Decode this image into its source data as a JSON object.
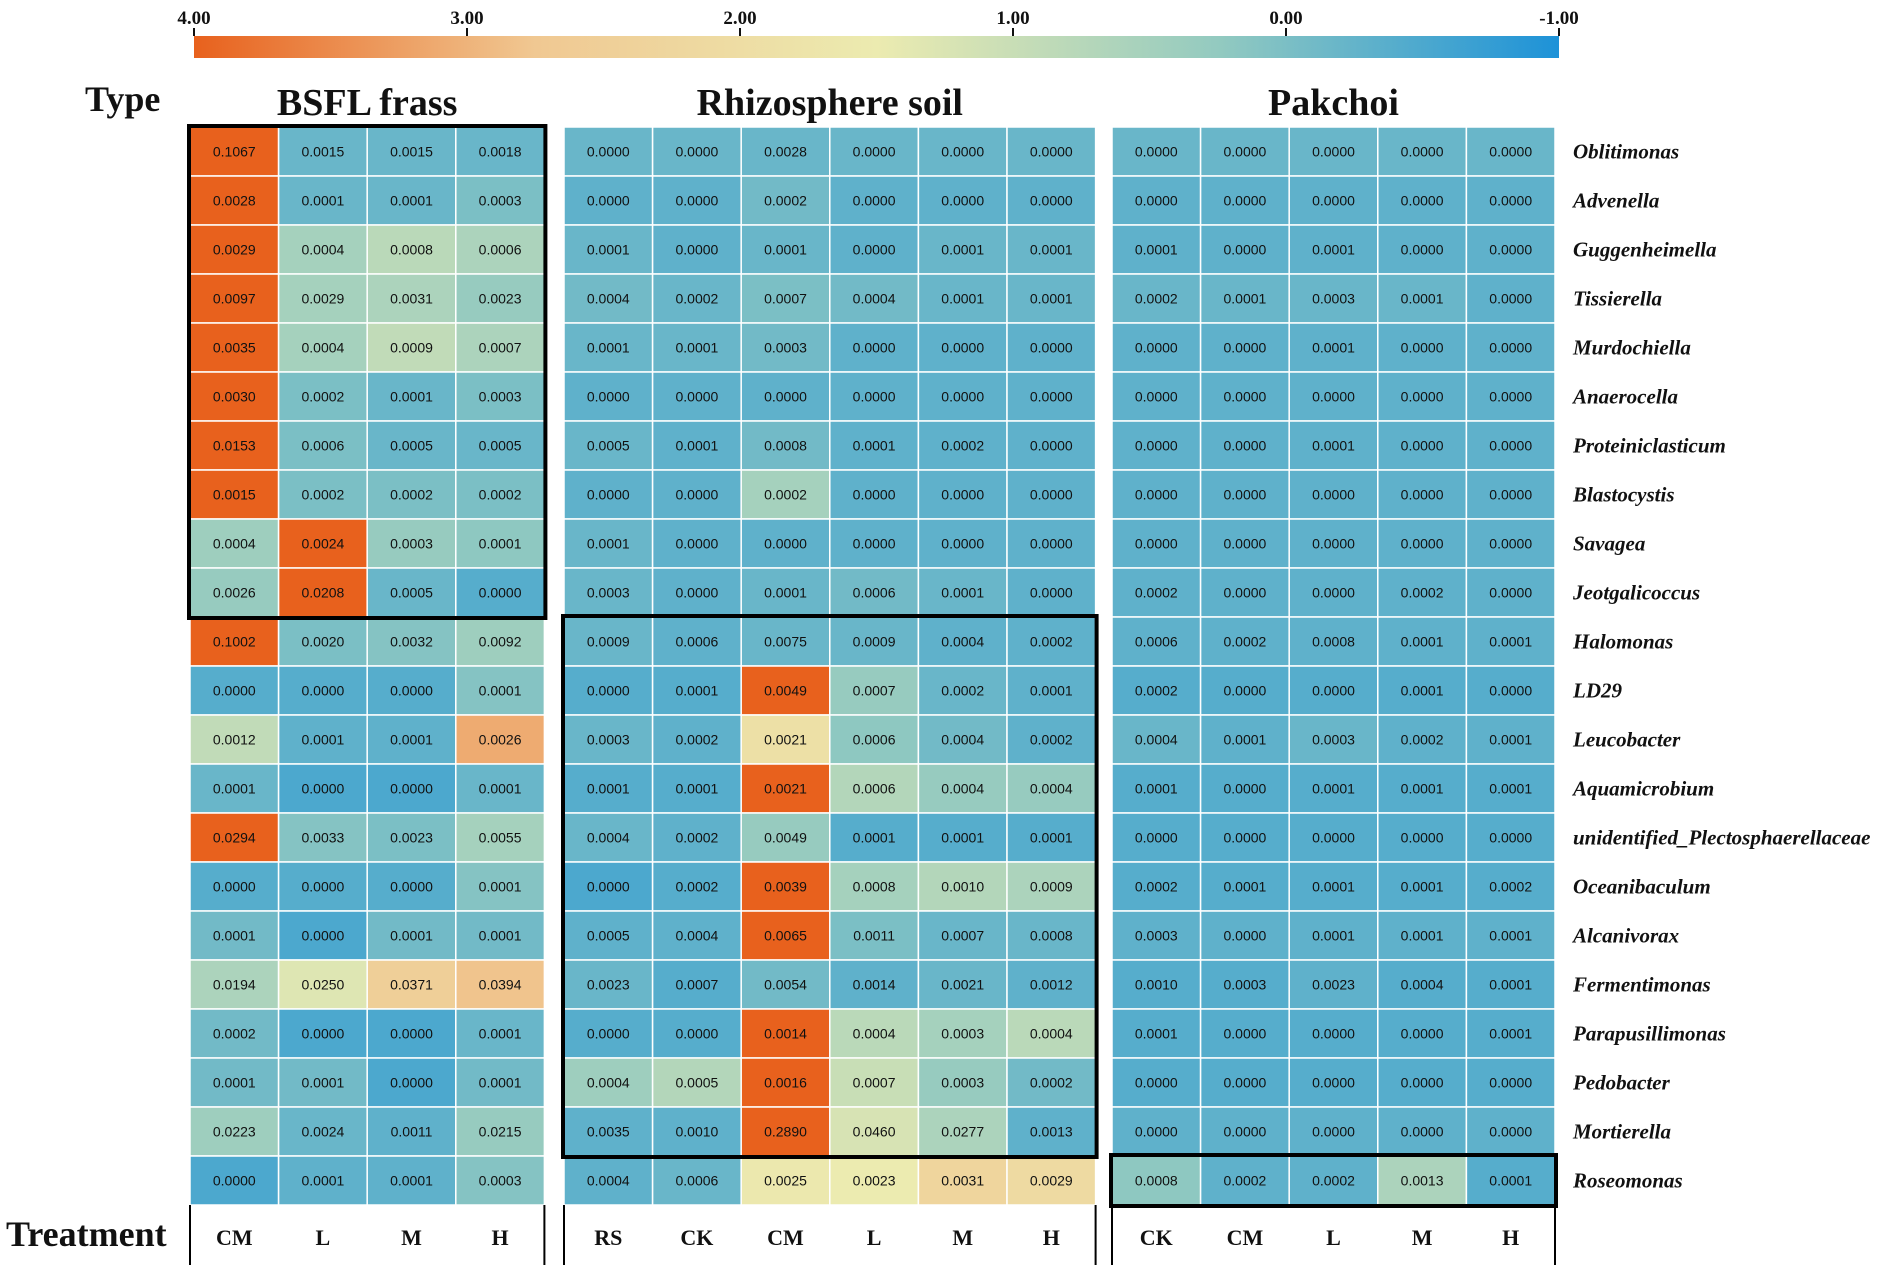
{
  "chart_data": {
    "type": "heatmap",
    "row_header": "Type",
    "column_header": "Treatment",
    "colorbar": {
      "ticks": [
        "4.00",
        "3.00",
        "2.00",
        "1.00",
        "0.00",
        "-1.00"
      ],
      "range": [
        4,
        -1
      ],
      "colors": [
        "#e8611d",
        "#f0c892",
        "#ecebb0",
        "#93cac0",
        "#1d92d8"
      ]
    },
    "rows": [
      "Oblitimonas",
      "Advenella",
      "Guggenheimella",
      "Tissierella",
      "Murdochiella",
      "Anaerocella",
      "Proteiniclasticum",
      "Blastocystis",
      "Savagea",
      "Jeotgalicoccus",
      "Halomonas",
      "LD29",
      "Leucobacter",
      "Aquamicrobium",
      "unidentified_Plectosphaerellaceae",
      "Oceanibaculum",
      "Alcanivorax",
      "Fermentimonas",
      "Parapusillimonas",
      "Pedobacter",
      "Mortierella",
      "Roseomonas"
    ],
    "panels": [
      {
        "title": "BSFL frass",
        "columns": [
          "CM",
          "L",
          "M",
          "H"
        ],
        "highlight_rows": [
          [
            0,
            9
          ]
        ],
        "values": [
          [
            "0.1067",
            "0.0015",
            "0.0015",
            "0.0018"
          ],
          [
            "0.0028",
            "0.0001",
            "0.0001",
            "0.0003"
          ],
          [
            "0.0029",
            "0.0004",
            "0.0008",
            "0.0006"
          ],
          [
            "0.0097",
            "0.0029",
            "0.0031",
            "0.0023"
          ],
          [
            "0.0035",
            "0.0004",
            "0.0009",
            "0.0007"
          ],
          [
            "0.0030",
            "0.0002",
            "0.0001",
            "0.0003"
          ],
          [
            "0.0153",
            "0.0006",
            "0.0005",
            "0.0005"
          ],
          [
            "0.0015",
            "0.0002",
            "0.0002",
            "0.0002"
          ],
          [
            "0.0004",
            "0.0024",
            "0.0003",
            "0.0001"
          ],
          [
            "0.0026",
            "0.0208",
            "0.0005",
            "0.0000"
          ],
          [
            "0.1002",
            "0.0020",
            "0.0032",
            "0.0092"
          ],
          [
            "0.0000",
            "0.0000",
            "0.0000",
            "0.0001"
          ],
          [
            "0.0012",
            "0.0001",
            "0.0001",
            "0.0026"
          ],
          [
            "0.0001",
            "0.0000",
            "0.0000",
            "0.0001"
          ],
          [
            "0.0294",
            "0.0033",
            "0.0023",
            "0.0055"
          ],
          [
            "0.0000",
            "0.0000",
            "0.0000",
            "0.0001"
          ],
          [
            "0.0001",
            "0.0000",
            "0.0001",
            "0.0001"
          ],
          [
            "0.0194",
            "0.0250",
            "0.0371",
            "0.0394"
          ],
          [
            "0.0002",
            "0.0000",
            "0.0000",
            "0.0001"
          ],
          [
            "0.0001",
            "0.0001",
            "0.0000",
            "0.0001"
          ],
          [
            "0.0223",
            "0.0024",
            "0.0011",
            "0.0215"
          ],
          [
            "0.0000",
            "0.0001",
            "0.0001",
            "0.0003"
          ]
        ],
        "z_scores": [
          [
            4.0,
            -0.2,
            -0.2,
            -0.2
          ],
          [
            4.0,
            -0.2,
            -0.2,
            0.0
          ],
          [
            4.0,
            0.5,
            0.8,
            0.6
          ],
          [
            4.0,
            0.5,
            0.6,
            0.3
          ],
          [
            4.0,
            0.5,
            0.9,
            0.6
          ],
          [
            4.0,
            0.0,
            -0.2,
            0.0
          ],
          [
            4.0,
            0.0,
            -0.2,
            -0.2
          ],
          [
            4.0,
            0.0,
            0.0,
            0.0
          ],
          [
            0.4,
            4.0,
            0.3,
            0.2
          ],
          [
            0.3,
            4.0,
            -0.2,
            -0.4
          ],
          [
            4.0,
            0.0,
            0.1,
            0.4
          ],
          [
            -0.4,
            -0.4,
            -0.4,
            0.1
          ],
          [
            0.9,
            -0.3,
            -0.3,
            3.1
          ],
          [
            -0.2,
            -0.5,
            -0.5,
            -0.2
          ],
          [
            4.0,
            0.1,
            0.0,
            0.5
          ],
          [
            -0.4,
            -0.4,
            -0.4,
            0.1
          ],
          [
            -0.1,
            -0.5,
            -0.1,
            -0.1
          ],
          [
            0.6,
            1.3,
            2.5,
            2.8
          ],
          [
            -0.1,
            -0.5,
            -0.5,
            -0.2
          ],
          [
            -0.1,
            -0.1,
            -0.5,
            -0.1
          ],
          [
            0.4,
            -0.2,
            -0.3,
            0.3
          ],
          [
            -0.5,
            -0.3,
            -0.3,
            0.1
          ]
        ]
      },
      {
        "title": "Rhizosphere soil",
        "columns": [
          "RS",
          "CK",
          "CM",
          "L",
          "M",
          "H"
        ],
        "highlight_rows": [
          [
            10,
            20
          ]
        ],
        "values": [
          [
            "0.0000",
            "0.0000",
            "0.0028",
            "0.0000",
            "0.0000",
            "0.0000"
          ],
          [
            "0.0000",
            "0.0000",
            "0.0002",
            "0.0000",
            "0.0000",
            "0.0000"
          ],
          [
            "0.0001",
            "0.0000",
            "0.0001",
            "0.0000",
            "0.0001",
            "0.0001"
          ],
          [
            "0.0004",
            "0.0002",
            "0.0007",
            "0.0004",
            "0.0001",
            "0.0001"
          ],
          [
            "0.0001",
            "0.0001",
            "0.0003",
            "0.0000",
            "0.0000",
            "0.0000"
          ],
          [
            "0.0000",
            "0.0000",
            "0.0000",
            "0.0000",
            "0.0000",
            "0.0000"
          ],
          [
            "0.0005",
            "0.0001",
            "0.0008",
            "0.0001",
            "0.0002",
            "0.0000"
          ],
          [
            "0.0000",
            "0.0000",
            "0.0002",
            "0.0000",
            "0.0000",
            "0.0000"
          ],
          [
            "0.0001",
            "0.0000",
            "0.0000",
            "0.0000",
            "0.0000",
            "0.0000"
          ],
          [
            "0.0003",
            "0.0000",
            "0.0001",
            "0.0006",
            "0.0001",
            "0.0000"
          ],
          [
            "0.0009",
            "0.0006",
            "0.0075",
            "0.0009",
            "0.0004",
            "0.0002"
          ],
          [
            "0.0000",
            "0.0001",
            "0.0049",
            "0.0007",
            "0.0002",
            "0.0001"
          ],
          [
            "0.0003",
            "0.0002",
            "0.0021",
            "0.0006",
            "0.0004",
            "0.0002"
          ],
          [
            "0.0001",
            "0.0001",
            "0.0021",
            "0.0006",
            "0.0004",
            "0.0004"
          ],
          [
            "0.0004",
            "0.0002",
            "0.0049",
            "0.0001",
            "0.0001",
            "0.0001"
          ],
          [
            "0.0000",
            "0.0002",
            "0.0039",
            "0.0008",
            "0.0010",
            "0.0009"
          ],
          [
            "0.0005",
            "0.0004",
            "0.0065",
            "0.0011",
            "0.0007",
            "0.0008"
          ],
          [
            "0.0023",
            "0.0007",
            "0.0054",
            "0.0014",
            "0.0021",
            "0.0012"
          ],
          [
            "0.0000",
            "0.0000",
            "0.0014",
            "0.0004",
            "0.0003",
            "0.0004"
          ],
          [
            "0.0004",
            "0.0005",
            "0.0016",
            "0.0007",
            "0.0003",
            "0.0002"
          ],
          [
            "0.0035",
            "0.0010",
            "0.2890",
            "0.0460",
            "0.0277",
            "0.0013"
          ],
          [
            "0.0004",
            "0.0006",
            "0.0025",
            "0.0023",
            "0.0031",
            "0.0029"
          ]
        ],
        "z_scores": [
          [
            -0.2,
            -0.2,
            -0.2,
            -0.2,
            -0.2,
            -0.2
          ],
          [
            -0.3,
            -0.3,
            -0.1,
            -0.3,
            -0.3,
            -0.3
          ],
          [
            -0.2,
            -0.3,
            -0.2,
            -0.3,
            -0.2,
            -0.2
          ],
          [
            -0.1,
            -0.2,
            0.0,
            -0.1,
            -0.2,
            -0.2
          ],
          [
            -0.2,
            -0.2,
            -0.1,
            -0.3,
            -0.3,
            -0.3
          ],
          [
            -0.3,
            -0.3,
            -0.3,
            -0.3,
            -0.3,
            -0.3
          ],
          [
            -0.2,
            -0.3,
            -0.1,
            -0.3,
            -0.3,
            -0.3
          ],
          [
            -0.3,
            -0.3,
            0.5,
            -0.3,
            -0.3,
            -0.3
          ],
          [
            -0.2,
            -0.3,
            -0.3,
            -0.3,
            -0.3,
            -0.3
          ],
          [
            -0.2,
            -0.3,
            -0.2,
            -0.1,
            -0.2,
            -0.3
          ],
          [
            -0.2,
            -0.3,
            -0.2,
            -0.2,
            -0.3,
            -0.3
          ],
          [
            -0.4,
            -0.4,
            4.0,
            0.3,
            -0.2,
            -0.3
          ],
          [
            -0.2,
            -0.3,
            1.9,
            0.2,
            -0.1,
            -0.3
          ],
          [
            -0.4,
            -0.4,
            4.0,
            0.7,
            0.3,
            0.3
          ],
          [
            -0.2,
            -0.3,
            0.3,
            -0.4,
            -0.4,
            -0.4
          ],
          [
            -0.5,
            -0.4,
            4.0,
            0.5,
            0.7,
            0.6
          ],
          [
            -0.3,
            -0.3,
            4.0,
            0.0,
            -0.2,
            -0.2
          ],
          [
            -0.2,
            -0.4,
            -0.1,
            -0.3,
            -0.2,
            -0.3
          ],
          [
            -0.4,
            -0.4,
            4.0,
            0.8,
            0.5,
            0.8
          ],
          [
            0.4,
            0.7,
            4.0,
            1.0,
            0.3,
            -0.1
          ],
          [
            -0.3,
            -0.3,
            4.0,
            1.2,
            0.6,
            -0.3
          ],
          [
            -0.3,
            -0.2,
            1.6,
            1.5,
            2.3,
            2.1
          ]
        ]
      },
      {
        "title": "Pakchoi",
        "columns": [
          "CK",
          "CM",
          "L",
          "M",
          "H"
        ],
        "highlight_rows": [
          [
            21,
            21
          ]
        ],
        "values": [
          [
            "0.0000",
            "0.0000",
            "0.0000",
            "0.0000",
            "0.0000"
          ],
          [
            "0.0000",
            "0.0000",
            "0.0000",
            "0.0000",
            "0.0000"
          ],
          [
            "0.0001",
            "0.0000",
            "0.0001",
            "0.0000",
            "0.0000"
          ],
          [
            "0.0002",
            "0.0001",
            "0.0003",
            "0.0001",
            "0.0000"
          ],
          [
            "0.0000",
            "0.0000",
            "0.0001",
            "0.0000",
            "0.0000"
          ],
          [
            "0.0000",
            "0.0000",
            "0.0000",
            "0.0000",
            "0.0000"
          ],
          [
            "0.0000",
            "0.0000",
            "0.0001",
            "0.0000",
            "0.0000"
          ],
          [
            "0.0000",
            "0.0000",
            "0.0000",
            "0.0000",
            "0.0000"
          ],
          [
            "0.0000",
            "0.0000",
            "0.0000",
            "0.0000",
            "0.0000"
          ],
          [
            "0.0002",
            "0.0000",
            "0.0000",
            "0.0002",
            "0.0000"
          ],
          [
            "0.0006",
            "0.0002",
            "0.0008",
            "0.0001",
            "0.0001"
          ],
          [
            "0.0002",
            "0.0000",
            "0.0000",
            "0.0001",
            "0.0000"
          ],
          [
            "0.0004",
            "0.0001",
            "0.0003",
            "0.0002",
            "0.0001"
          ],
          [
            "0.0001",
            "0.0000",
            "0.0001",
            "0.0001",
            "0.0001"
          ],
          [
            "0.0000",
            "0.0000",
            "0.0000",
            "0.0000",
            "0.0000"
          ],
          [
            "0.0002",
            "0.0001",
            "0.0001",
            "0.0001",
            "0.0002"
          ],
          [
            "0.0003",
            "0.0000",
            "0.0001",
            "0.0001",
            "0.0001"
          ],
          [
            "0.0010",
            "0.0003",
            "0.0023",
            "0.0004",
            "0.0001"
          ],
          [
            "0.0001",
            "0.0000",
            "0.0000",
            "0.0000",
            "0.0001"
          ],
          [
            "0.0000",
            "0.0000",
            "0.0000",
            "0.0000",
            "0.0000"
          ],
          [
            "0.0000",
            "0.0000",
            "0.0000",
            "0.0000",
            "0.0000"
          ],
          [
            "0.0008",
            "0.0002",
            "0.0002",
            "0.0013",
            "0.0001"
          ]
        ],
        "z_scores": [
          [
            -0.2,
            -0.2,
            -0.2,
            -0.2,
            -0.2
          ],
          [
            -0.3,
            -0.3,
            -0.3,
            -0.3,
            -0.3
          ],
          [
            -0.3,
            -0.3,
            -0.3,
            -0.3,
            -0.3
          ],
          [
            -0.2,
            -0.2,
            -0.2,
            -0.2,
            -0.3
          ],
          [
            -0.3,
            -0.3,
            -0.3,
            -0.3,
            -0.3
          ],
          [
            -0.3,
            -0.3,
            -0.3,
            -0.3,
            -0.3
          ],
          [
            -0.3,
            -0.3,
            -0.3,
            -0.3,
            -0.3
          ],
          [
            -0.3,
            -0.3,
            -0.3,
            -0.3,
            -0.3
          ],
          [
            -0.3,
            -0.3,
            -0.3,
            -0.3,
            -0.3
          ],
          [
            -0.3,
            -0.3,
            -0.3,
            -0.3,
            -0.3
          ],
          [
            -0.3,
            -0.3,
            -0.3,
            -0.3,
            -0.3
          ],
          [
            -0.4,
            -0.4,
            -0.4,
            -0.4,
            -0.4
          ],
          [
            -0.2,
            -0.3,
            -0.2,
            -0.3,
            -0.3
          ],
          [
            -0.4,
            -0.4,
            -0.4,
            -0.4,
            -0.4
          ],
          [
            -0.4,
            -0.4,
            -0.4,
            -0.4,
            -0.4
          ],
          [
            -0.4,
            -0.4,
            -0.4,
            -0.4,
            -0.4
          ],
          [
            -0.3,
            -0.3,
            -0.3,
            -0.3,
            -0.3
          ],
          [
            -0.4,
            -0.4,
            -0.3,
            -0.4,
            -0.4
          ],
          [
            -0.4,
            -0.4,
            -0.4,
            -0.4,
            -0.4
          ],
          [
            -0.4,
            -0.4,
            -0.4,
            -0.4,
            -0.4
          ],
          [
            -0.3,
            -0.3,
            -0.3,
            -0.3,
            -0.3
          ],
          [
            0.2,
            -0.3,
            -0.3,
            0.6,
            -0.4
          ]
        ]
      }
    ]
  }
}
